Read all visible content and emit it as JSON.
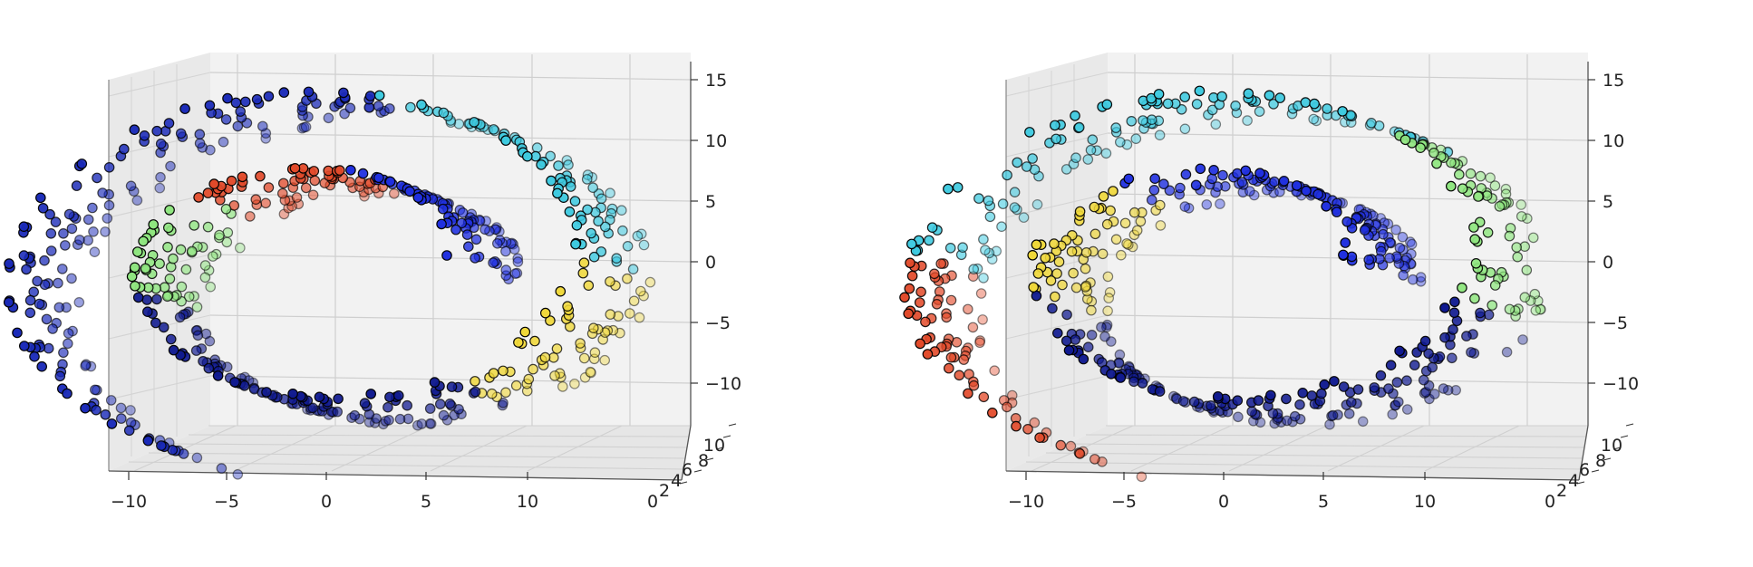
{
  "chart_data": [
    {
      "type": "scatter",
      "projection": "3d",
      "title": "",
      "xlabel": "",
      "ylabel": "",
      "zlabel": "",
      "x_ticks": [
        "−10",
        "−5",
        "0",
        "5",
        "10"
      ],
      "y_ticks": [
        "0",
        "2",
        "4",
        "6",
        "8",
        "10"
      ],
      "z_ticks": [
        "15",
        "10",
        "5",
        "0",
        "−5",
        "−10"
      ],
      "xlim": [
        -11,
        14
      ],
      "ylim": [
        0,
        11
      ],
      "zlim": [
        -14,
        16
      ],
      "grid": true,
      "marker_edge": "#000000",
      "clusters": [
        {
          "color": "#2030e0",
          "t_range": [
            7.2,
            9.0
          ]
        },
        {
          "color": "#e24a2a",
          "t_range": [
            9.0,
            10.4
          ]
        },
        {
          "color": "#8fe67f",
          "t_range": [
            10.4,
            11.6
          ]
        },
        {
          "color": "#101a90",
          "t_range": [
            11.6,
            14.2
          ]
        },
        {
          "color": "#f0d83a",
          "t_range": [
            14.2,
            15.6
          ]
        },
        {
          "color": "#3ecae0",
          "t_range": [
            15.6,
            17.4
          ]
        },
        {
          "color": "#1a2ab8",
          "t_range": [
            17.4,
            21.2
          ]
        }
      ]
    },
    {
      "type": "scatter",
      "projection": "3d",
      "title": "",
      "xlabel": "",
      "ylabel": "",
      "zlabel": "",
      "x_ticks": [
        "−10",
        "−5",
        "0",
        "5",
        "10"
      ],
      "y_ticks": [
        "0",
        "2",
        "4",
        "6",
        "8",
        "10"
      ],
      "z_ticks": [
        "15",
        "10",
        "5",
        "0",
        "−5",
        "−10"
      ],
      "xlim": [
        -11,
        14
      ],
      "ylim": [
        0,
        11
      ],
      "zlim": [
        -14,
        16
      ],
      "grid": true,
      "marker_edge": "#000000",
      "clusters": [
        {
          "color": "#2030e0",
          "t_range": [
            7.2,
            10.2
          ]
        },
        {
          "color": "#f0d83a",
          "t_range": [
            10.2,
            11.6
          ]
        },
        {
          "color": "#101a90",
          "t_range": [
            11.6,
            15.2
          ]
        },
        {
          "color": "#8fe67f",
          "t_range": [
            15.2,
            16.8
          ]
        },
        {
          "color": "#3ecae0",
          "t_range": [
            16.8,
            19.6
          ]
        },
        {
          "color": "#e24a2a",
          "t_range": [
            19.6,
            21.2
          ]
        }
      ]
    }
  ]
}
